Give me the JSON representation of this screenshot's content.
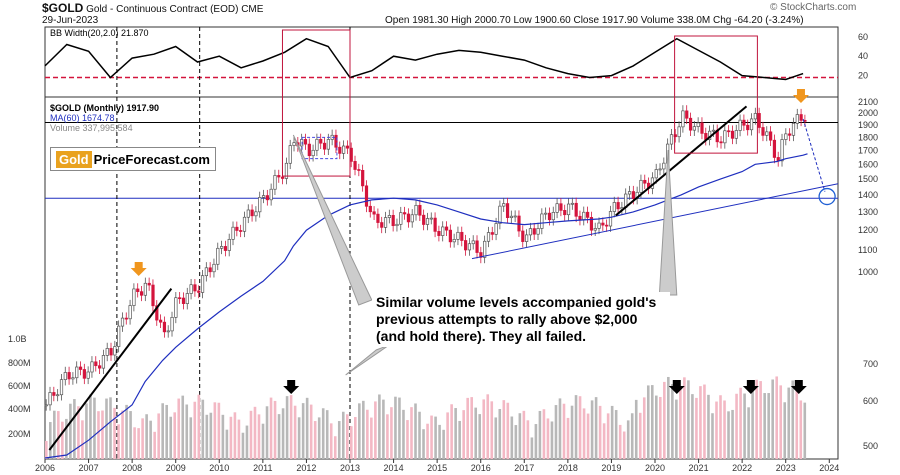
{
  "header": {
    "symbol": "$GOLD",
    "name": "Gold - Continuous Contract (EOD)",
    "exchange": "CME",
    "date": "29-Jun-2023",
    "quote": "Open 1981.30  High 2000.70  Low 1900.60  Close 1917.90  Volume 338.0M  Chg -64.20 (-3.24%)",
    "source": "© StockCharts.com"
  },
  "logo": {
    "part1": "Gold",
    "part2": "PriceForecast.com"
  },
  "annotation": "Similar volume levels accompanied gold's previous attempts to rally above $2,000 (and hold there). They all failed.",
  "colors": {
    "up": "#555555",
    "down": "#d4143c",
    "ma": "#1f2fbf",
    "bb": "#000000",
    "dash_red": "#d4143c",
    "box": "#c0143c",
    "arrow_orange": "#f0961e",
    "vol_up": "#b8b8b8",
    "vol_down": "#f3b8c4",
    "ellipse": "#1f5fd4"
  },
  "chart_data": [
    {
      "type": "line",
      "panel": "indicator",
      "legend": "BB Width(20,2.0) 21.870",
      "yticks": [
        20,
        40,
        60
      ],
      "ylim": [
        0,
        68
      ],
      "x": [
        2006.0,
        2006.5,
        2007.0,
        2007.5,
        2008.0,
        2008.5,
        2009.0,
        2009.5,
        2010.0,
        2010.5,
        2011.0,
        2011.5,
        2012.0,
        2012.5,
        2013.0,
        2013.5,
        2014.0,
        2014.5,
        2015.0,
        2015.5,
        2016.0,
        2016.5,
        2017.0,
        2017.5,
        2018.0,
        2018.5,
        2019.0,
        2019.5,
        2020.0,
        2020.5,
        2021.0,
        2021.5,
        2022.0,
        2022.5,
        2023.0,
        2023.4
      ],
      "values": [
        30,
        52,
        45,
        18,
        38,
        42,
        50,
        34,
        40,
        28,
        35,
        44,
        58,
        50,
        18,
        25,
        40,
        36,
        42,
        46,
        44,
        40,
        36,
        28,
        22,
        18,
        20,
        30,
        44,
        58,
        46,
        34,
        20,
        18,
        16,
        22
      ],
      "reference_line": 18
    },
    {
      "type": "candlestick",
      "panel": "price",
      "legend": [
        "$GOLD (Monthly) 1917.90",
        "MA(60) 1674.78",
        "Volume 337,995,584"
      ],
      "xticks": [
        "2006",
        "2007",
        "2008",
        "2009",
        "2010",
        "2011",
        "2012",
        "2013",
        "2014",
        "2015",
        "2016",
        "2017",
        "2018",
        "2019",
        "2020",
        "2021",
        "2022",
        "2023",
        "2024"
      ],
      "yticks": [
        1000,
        1100,
        1200,
        1300,
        1400,
        1500,
        1600,
        1700,
        1800,
        1900,
        2000,
        2100
      ],
      "horizontal_lines": [
        1920,
        1380
      ],
      "x": [
        2006.0,
        2006.5,
        2007.0,
        2007.5,
        2008.0,
        2008.3,
        2008.7,
        2009.0,
        2009.5,
        2010.0,
        2010.5,
        2011.0,
        2011.5,
        2011.7,
        2012.0,
        2012.5,
        2013.0,
        2013.5,
        2014.0,
        2014.5,
        2015.0,
        2015.5,
        2016.0,
        2016.5,
        2017.0,
        2017.5,
        2018.0,
        2018.7,
        2019.0,
        2019.5,
        2020.0,
        2020.6,
        2021.0,
        2021.5,
        2022.0,
        2022.3,
        2022.8,
        2023.0,
        2023.4,
        2023.5
      ],
      "close": [
        560,
        640,
        650,
        710,
        900,
        950,
        750,
        880,
        940,
        1100,
        1240,
        1380,
        1580,
        1800,
        1700,
        1780,
        1660,
        1250,
        1250,
        1300,
        1200,
        1150,
        1090,
        1340,
        1150,
        1290,
        1330,
        1200,
        1310,
        1420,
        1520,
        1970,
        1850,
        1790,
        1900,
        1950,
        1640,
        1850,
        1990,
        1918
      ],
      "ma60": [
        420,
        450,
        480,
        520,
        560,
        620,
        680,
        720,
        780,
        840,
        900,
        960,
        1050,
        1120,
        1200,
        1280,
        1340,
        1370,
        1380,
        1370,
        1340,
        1300,
        1260,
        1240,
        1230,
        1240,
        1250,
        1260,
        1270,
        1300,
        1340,
        1400,
        1450,
        1500,
        1550,
        1600,
        1620,
        1640,
        1665,
        1675
      ],
      "volume_y_axis": [
        "200M",
        "400M",
        "600M",
        "800M",
        "1.0B"
      ],
      "secondary_axis": [
        500,
        600,
        700
      ]
    }
  ]
}
